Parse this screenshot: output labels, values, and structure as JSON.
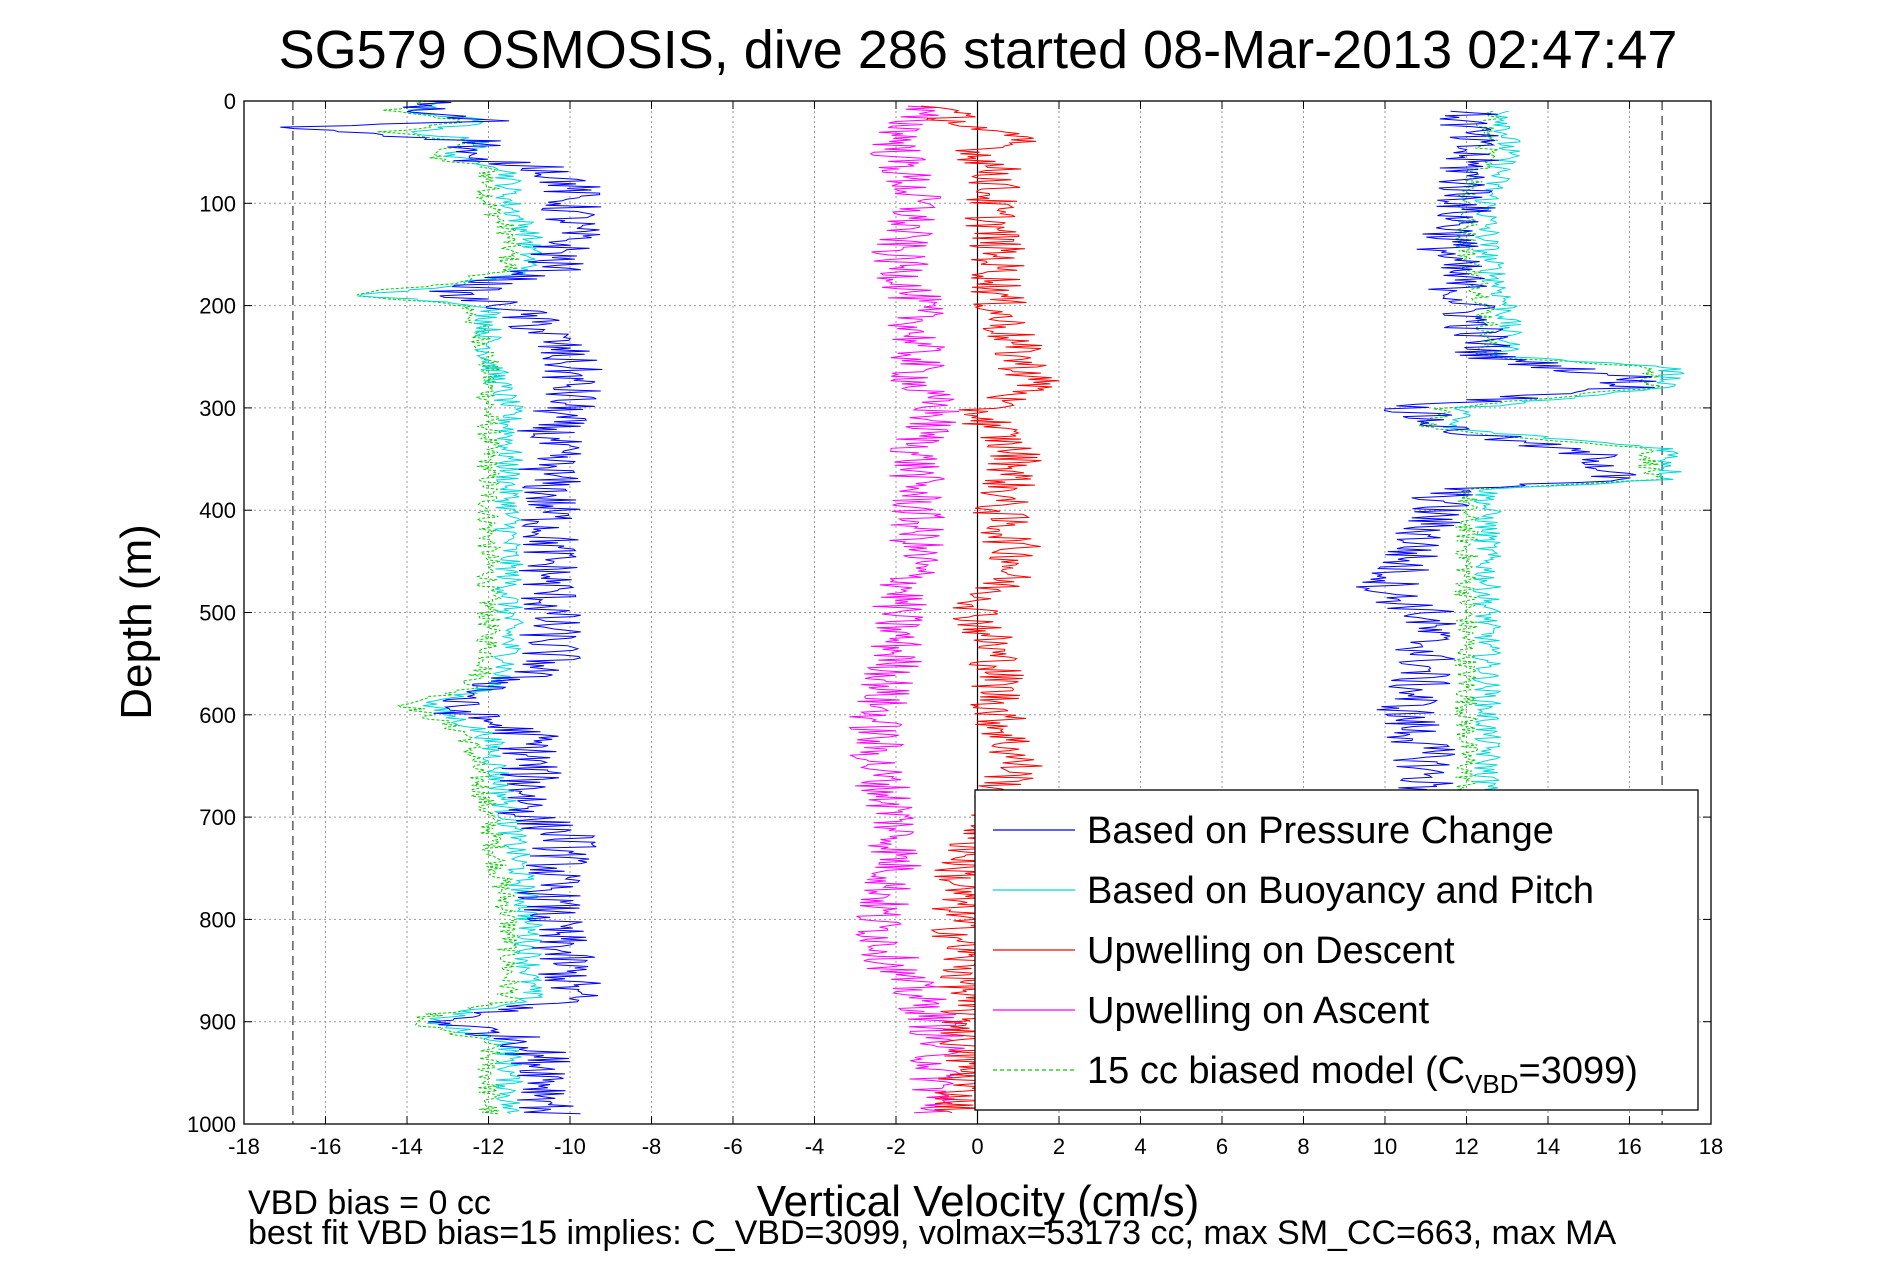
{
  "chart_data": {
    "type": "line",
    "title": "SG579 OSMOSIS, dive 286 started 08-Mar-2013 02:47:47",
    "xlabel": "Vertical Velocity (cm/s)",
    "ylabel": "Depth (m)",
    "xlim": [
      -18,
      18
    ],
    "ylim": [
      0,
      1000
    ],
    "y_reversed": true,
    "grid": true,
    "xticks": [
      "-18",
      "-16",
      "-14",
      "-12",
      "-10",
      "-8",
      "-6",
      "-4",
      "-2",
      "0",
      "2",
      "4",
      "6",
      "8",
      "10",
      "12",
      "14",
      "16",
      "18"
    ],
    "yticks": [
      "0",
      "100",
      "200",
      "300",
      "400",
      "500",
      "600",
      "700",
      "800",
      "900",
      "1000"
    ],
    "reference_lines": {
      "dashed_x": [
        -16.8,
        16.8
      ],
      "solid_x": [
        0
      ]
    },
    "legend_position": "bottom-right",
    "series": [
      {
        "name": "Based on Pressure Change",
        "color": "#0000ff",
        "noise": 0.8,
        "segments": [
          {
            "depth": [
              0,
              10,
              20,
              25,
              40,
              55,
              65,
              80,
              100,
              130,
              165,
              178,
              190,
              200,
              230,
              260,
              290,
              320,
              360,
              400,
              450,
              500,
              550,
              575,
              590,
              600,
              620,
              650,
              700,
              720,
              760,
              800,
              860,
              880,
              890,
              900,
              920,
              950,
              980,
              990
            ],
            "velocity": [
              -13,
              -14,
              -12,
              -17,
              -12,
              -13,
              -10.5,
              -10,
              -10,
              -10,
              -10.5,
              -12,
              -13,
              -11.5,
              -10.5,
              -10,
              -10,
              -10.5,
              -10.5,
              -10.5,
              -10.5,
              -10.5,
              -10.5,
              -12,
              -13,
              -12.5,
              -11,
              -11,
              -11,
              -10,
              -10.5,
              -10.5,
              -10,
              -10,
              -12,
              -13,
              -11,
              -10.5,
              -10.5,
              -10.5
            ]
          },
          {
            "depth": [
              10,
              50,
              100,
              150,
              200,
              250,
              270,
              280,
              300,
              320,
              350,
              370,
              380,
              420,
              450,
              480,
              500,
              550,
              600,
              640,
              680
            ],
            "velocity": [
              12,
              12,
              12,
              11.5,
              12,
              12.5,
              16,
              16,
              10.5,
              11.5,
              15.5,
              15.5,
              11.5,
              11,
              10.5,
              10,
              11,
              11,
              10.5,
              11,
              11
            ]
          }
        ]
      },
      {
        "name": "Based on Buoyancy and Pitch",
        "color": "#00d8d8",
        "noise": 0.35,
        "segments": [
          {
            "depth": [
              0,
              10,
              20,
              30,
              40,
              55,
              65,
              80,
              100,
              130,
              165,
              178,
              190,
              200,
              250,
              300,
              350,
              400,
              450,
              500,
              550,
              575,
              590,
              600,
              620,
              700,
              800,
              880,
              890,
              900,
              920,
              950,
              980,
              990
            ],
            "velocity": [
              -13,
              -14,
              -12,
              -14,
              -12,
              -13,
              -11.5,
              -11.5,
              -11.5,
              -11,
              -11,
              -12.5,
              -15,
              -12,
              -12,
              -11.5,
              -11.5,
              -11.5,
              -11.5,
              -11.5,
              -11.5,
              -12,
              -13.5,
              -13,
              -12,
              -11.5,
              -11,
              -11,
              -12.5,
              -13.5,
              -11.5,
              -11.5,
              -11.5,
              -11.5
            ]
          },
          {
            "depth": [
              10,
              50,
              100,
              150,
              200,
              250,
              260,
              280,
              300,
              320,
              340,
              370,
              380,
              450,
              550,
              600,
              680
            ],
            "velocity": [
              13,
              13,
              12.5,
              12.5,
              13,
              13,
              17,
              17,
              12,
              11.5,
              17,
              17,
              12.5,
              12.5,
              12.5,
              12.5,
              12.5
            ]
          }
        ]
      },
      {
        "name": "Upwelling on Descent",
        "color": "#ff0000",
        "noise": 0.7,
        "segments": [
          {
            "depth": [
              5,
              20,
              40,
              50,
              70,
              100,
              150,
              200,
              250,
              280,
              300,
              350,
              400,
              450,
              500,
              550,
              600,
              650,
              680,
              700,
              720,
              760,
              800,
              850,
              900,
              950,
              990
            ],
            "velocity": [
              -1,
              -0.5,
              1,
              0,
              0.5,
              0.3,
              0.5,
              0.5,
              1,
              1.5,
              0,
              1,
              0.5,
              1,
              0,
              0.5,
              0.5,
              1,
              0.5,
              0.5,
              0,
              -0.5,
              -0.5,
              -0.3,
              -0.3,
              -0.3,
              -0.5
            ]
          }
        ]
      },
      {
        "name": "Upwelling on Ascent",
        "color": "#ff00ff",
        "noise": 0.7,
        "segments": [
          {
            "depth": [
              5,
              50,
              100,
              150,
              200,
              250,
              280,
              300,
              340,
              400,
              450,
              500,
              550,
              600,
              650,
              700,
              750,
              800,
              850,
              900,
              950,
              990
            ],
            "velocity": [
              -1.5,
              -2,
              -1.5,
              -2,
              -1.5,
              -1.5,
              -1.5,
              -1,
              -1.5,
              -1.5,
              -1.5,
              -2,
              -2,
              -2.5,
              -2.5,
              -2,
              -2,
              -2.5,
              -2,
              -1,
              -1,
              -1
            ]
          }
        ]
      },
      {
        "name": "15 cc biased model (C",
        "name_subscript": "VBD",
        "name_suffix": "=3099)",
        "color": "#00cc00",
        "dashed": true,
        "noise": 0.3,
        "segments": [
          {
            "depth": [
              0,
              10,
              20,
              30,
              40,
              55,
              65,
              80,
              100,
              130,
              165,
              178,
              190,
              200,
              250,
              300,
              350,
              400,
              450,
              500,
              550,
              575,
              590,
              600,
              620,
              700,
              800,
              880,
              890,
              900,
              920,
              950,
              980,
              990
            ],
            "velocity": [
              -13.5,
              -14.5,
              -12.5,
              -14.5,
              -12.5,
              -13.5,
              -12,
              -12,
              -12,
              -11.5,
              -11.5,
              -13,
              -15.5,
              -12.5,
              -12,
              -12,
              -12,
              -12,
              -12,
              -12,
              -12,
              -12.5,
              -14,
              -13.5,
              -12.5,
              -12,
              -11.5,
              -11.5,
              -13,
              -14,
              -12,
              -12,
              -12,
              -12
            ]
          },
          {
            "depth": [
              10,
              50,
              100,
              150,
              200,
              250,
              260,
              280,
              300,
              320,
              340,
              370,
              380,
              450,
              550,
              600,
              680
            ],
            "velocity": [
              12.5,
              12.5,
              12,
              12,
              12.5,
              12.5,
              16.5,
              16.5,
              11.5,
              11,
              16.5,
              16.5,
              12,
              12,
              12,
              12,
              12
            ]
          }
        ]
      }
    ],
    "annotations": [
      "VBD bias = 0 cc",
      "best fit VBD bias=15 implies: C_VBD=3099, volmax=53173 cc, max SM_CC=663, max MA"
    ]
  }
}
